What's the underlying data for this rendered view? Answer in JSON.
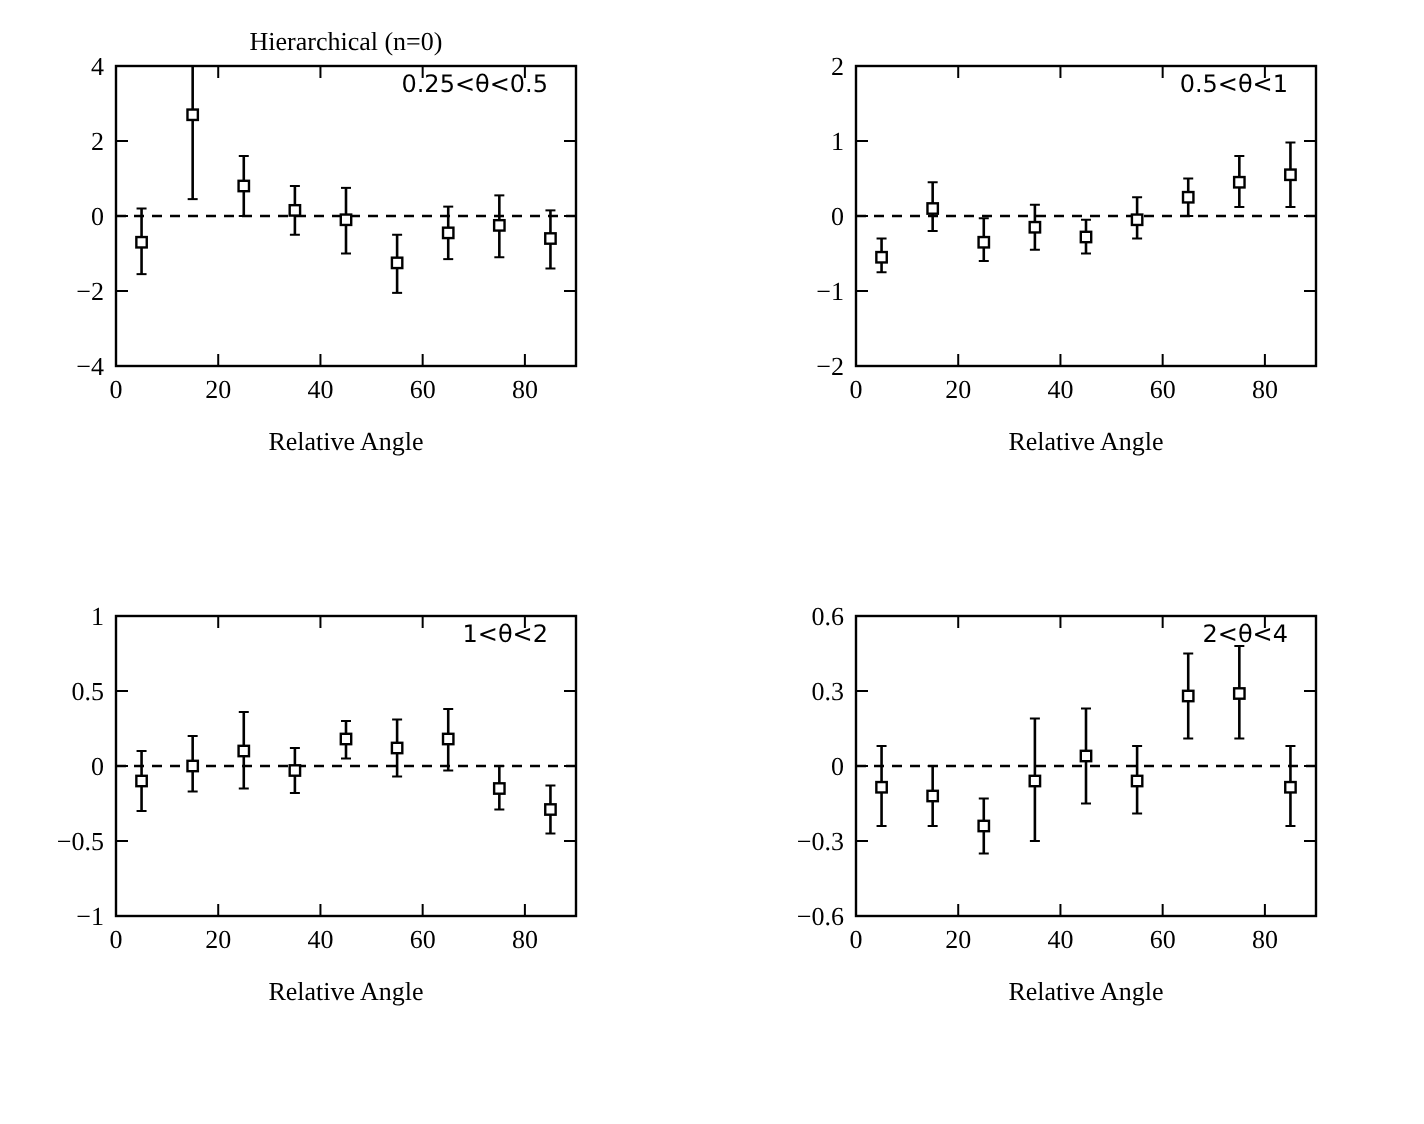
{
  "chart_data": [
    {
      "type": "scatter",
      "title": "Hierarchical (n=0)",
      "xlabel": "Relative Angle",
      "annotations": [
        "0.25<θ<0.5"
      ],
      "marker": "square",
      "xlim": [
        0,
        90
      ],
      "ylim": [
        -4,
        4
      ],
      "xticks": [
        0,
        20,
        40,
        60,
        80
      ],
      "yticks": [
        -4,
        -2,
        0,
        2,
        4
      ],
      "grid": false,
      "ref_lines": [
        {
          "axis": "y",
          "value": 0,
          "line_style": "dashed"
        }
      ],
      "x": [
        5,
        15,
        25,
        35,
        45,
        55,
        65,
        75,
        85
      ],
      "series": [
        {
          "color": "#000000",
          "values": [
            -0.7,
            2.7,
            0.8,
            0.15,
            -0.1,
            -1.25,
            -0.45,
            -0.25,
            -0.6
          ],
          "errors": [
            [
              -1.55,
              0.2
            ],
            [
              0.45,
              4
            ],
            [
              0,
              1.6
            ],
            [
              -0.5,
              0.8
            ],
            [
              -1.0,
              0.75
            ],
            [
              -2.05,
              -0.5
            ],
            [
              -1.15,
              0.25
            ],
            [
              -1.1,
              0.55
            ],
            [
              -1.4,
              0.15
            ]
          ]
        }
      ]
    },
    {
      "type": "scatter",
      "xlabel": "Relative Angle",
      "annotations": [
        "0.5<θ<1"
      ],
      "marker": "square",
      "xlim": [
        0,
        90
      ],
      "ylim": [
        -2,
        2
      ],
      "xticks": [
        0,
        20,
        40,
        60,
        80
      ],
      "yticks": [
        -2,
        -1,
        0,
        1,
        2
      ],
      "grid": false,
      "ref_lines": [
        {
          "axis": "y",
          "value": 0,
          "line_style": "dashed"
        }
      ],
      "x": [
        5,
        15,
        25,
        35,
        45,
        55,
        65,
        75,
        85
      ],
      "series": [
        {
          "color": "#000000",
          "values": [
            -0.55,
            0.1,
            -0.35,
            -0.15,
            -0.28,
            -0.05,
            0.25,
            0.45,
            0.55
          ],
          "errors": [
            [
              -0.75,
              -0.3
            ],
            [
              -0.2,
              0.45
            ],
            [
              -0.6,
              -0.03
            ],
            [
              -0.45,
              0.15
            ],
            [
              -0.5,
              -0.05
            ],
            [
              -0.3,
              0.25
            ],
            [
              0,
              0.5
            ],
            [
              0.12,
              0.8
            ],
            [
              0.12,
              0.98
            ]
          ]
        }
      ]
    },
    {
      "type": "scatter",
      "xlabel": "Relative Angle",
      "annotations": [
        "1<θ<2"
      ],
      "marker": "square",
      "xlim": [
        0,
        90
      ],
      "ylim": [
        -1,
        1
      ],
      "xticks": [
        0,
        20,
        40,
        60,
        80
      ],
      "yticks": [
        -1,
        -0.5,
        0,
        0.5,
        1
      ],
      "grid": false,
      "ref_lines": [
        {
          "axis": "y",
          "value": 0,
          "line_style": "dashed"
        }
      ],
      "x": [
        5,
        15,
        25,
        35,
        45,
        55,
        65,
        75,
        85
      ],
      "series": [
        {
          "color": "#000000",
          "values": [
            -0.1,
            0,
            0.1,
            -0.03,
            0.18,
            0.12,
            0.18,
            -0.15,
            -0.29
          ],
          "errors": [
            [
              -0.3,
              0.1
            ],
            [
              -0.17,
              0.2
            ],
            [
              -0.15,
              0.36
            ],
            [
              -0.18,
              0.12
            ],
            [
              0.05,
              0.3
            ],
            [
              -0.07,
              0.31
            ],
            [
              -0.03,
              0.38
            ],
            [
              -0.29,
              0
            ],
            [
              -0.45,
              -0.13
            ]
          ]
        }
      ]
    },
    {
      "type": "scatter",
      "xlabel": "Relative Angle",
      "annotations": [
        "2<θ<4"
      ],
      "marker": "square",
      "xlim": [
        0,
        90
      ],
      "ylim": [
        -0.6,
        0.6
      ],
      "xticks": [
        0,
        20,
        40,
        60,
        80
      ],
      "yticks": [
        -0.6,
        -0.3,
        0,
        0.3,
        0.6
      ],
      "grid": false,
      "ref_lines": [
        {
          "axis": "y",
          "value": 0,
          "line_style": "dashed"
        }
      ],
      "x": [
        5,
        15,
        25,
        35,
        45,
        55,
        65,
        75,
        85
      ],
      "series": [
        {
          "color": "#000000",
          "values": [
            -0.085,
            -0.12,
            -0.24,
            -0.06,
            0.04,
            -0.06,
            0.28,
            0.29,
            -0.085
          ],
          "errors": [
            [
              -0.24,
              0.08
            ],
            [
              -0.24,
              0
            ],
            [
              -0.35,
              -0.13
            ],
            [
              -0.3,
              0.19
            ],
            [
              -0.15,
              0.23
            ],
            [
              -0.19,
              0.08
            ],
            [
              0.11,
              0.45
            ],
            [
              0.11,
              0.48
            ],
            [
              -0.24,
              0.08
            ]
          ]
        }
      ]
    }
  ]
}
